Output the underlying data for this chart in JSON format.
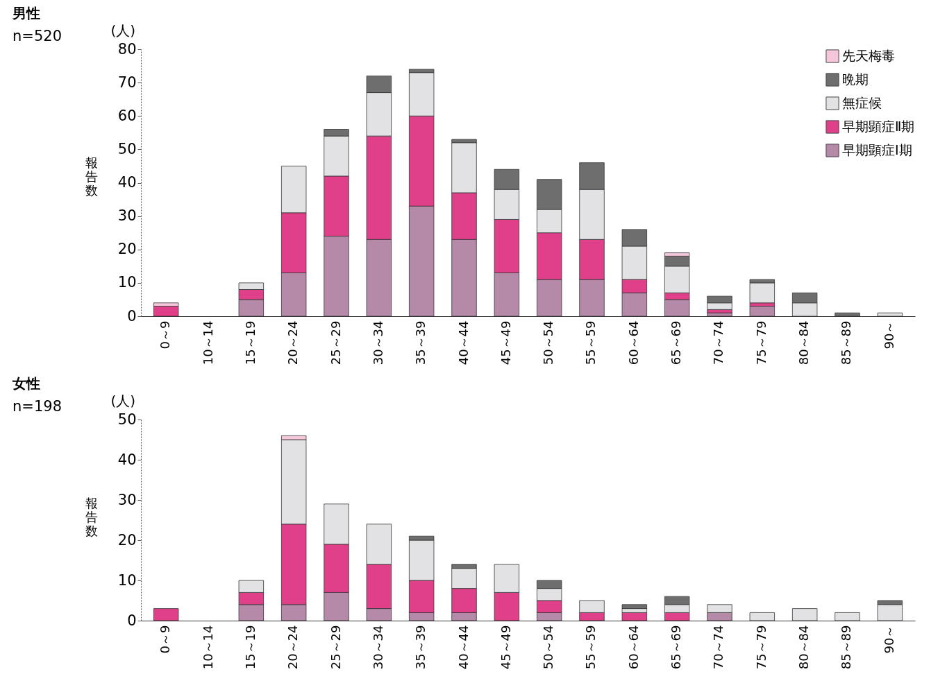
{
  "chart_data": [
    {
      "type": "bar",
      "title": "男性",
      "subtitle": "n=520",
      "ylabel": "報告数",
      "annotations": [
        "(人)"
      ],
      "categories": [
        "0～9",
        "10～14",
        "15～19",
        "20～24",
        "25～29",
        "30～34",
        "35～39",
        "40～44",
        "45～49",
        "50～54",
        "55～59",
        "60～64",
        "65～69",
        "70～74",
        "75～79",
        "80～84",
        "85～89",
        "90～"
      ],
      "stacked": true,
      "legend": "top right",
      "ylim": [
        0,
        80
      ],
      "yticks": [
        0,
        10,
        20,
        30,
        40,
        50,
        60,
        70,
        80
      ],
      "series": [
        {
          "name": "早期顕症Ⅰ期",
          "color": "#b58aa8",
          "values": [
            0,
            0,
            5,
            13,
            24,
            23,
            33,
            23,
            13,
            11,
            11,
            7,
            5,
            1,
            3,
            0,
            0,
            0
          ]
        },
        {
          "name": "早期顕症Ⅱ期",
          "color": "#e0408a",
          "values": [
            3,
            0,
            3,
            18,
            18,
            31,
            27,
            14,
            16,
            14,
            12,
            4,
            2,
            1,
            1,
            0,
            0,
            0
          ]
        },
        {
          "name": "無症候",
          "color": "#e2e2e4",
          "values": [
            0,
            0,
            2,
            14,
            12,
            13,
            13,
            15,
            9,
            7,
            15,
            10,
            8,
            2,
            6,
            4,
            0,
            1
          ]
        },
        {
          "name": "晩期",
          "color": "#6e6e6e",
          "values": [
            0,
            0,
            0,
            0,
            2,
            5,
            1,
            1,
            6,
            9,
            8,
            5,
            3,
            2,
            1,
            3,
            1,
            0
          ]
        },
        {
          "name": "先天梅毒",
          "color": "#f6c6da",
          "values": [
            1,
            0,
            0,
            0,
            0,
            0,
            0,
            0,
            0,
            0,
            0,
            0,
            1,
            0,
            0,
            0,
            0,
            0
          ]
        }
      ]
    },
    {
      "type": "bar",
      "title": "女性",
      "subtitle": "n=198",
      "ylabel": "報告数",
      "annotations": [
        "(人)"
      ],
      "categories": [
        "0～9",
        "10～14",
        "15～19",
        "20～24",
        "25～29",
        "30～34",
        "35～39",
        "40～44",
        "45～49",
        "50～54",
        "55～59",
        "60～64",
        "65～69",
        "70～74",
        "75～79",
        "80～84",
        "85～89",
        "90～"
      ],
      "stacked": true,
      "ylim": [
        0,
        50
      ],
      "yticks": [
        0,
        10,
        20,
        30,
        40,
        50
      ],
      "series": [
        {
          "color": "#b58aa8",
          "values": [
            0,
            0,
            4,
            4,
            7,
            3,
            2,
            2,
            0,
            2,
            0,
            0,
            0,
            2,
            0,
            0,
            0,
            0
          ]
        },
        {
          "color": "#e0408a",
          "values": [
            3,
            0,
            3,
            20,
            12,
            11,
            8,
            6,
            7,
            3,
            2,
            2,
            2,
            0,
            0,
            0,
            0,
            0
          ]
        },
        {
          "color": "#e2e2e4",
          "values": [
            0,
            0,
            3,
            21,
            10,
            10,
            10,
            5,
            7,
            3,
            3,
            1,
            2,
            2,
            2,
            3,
            2,
            4
          ]
        },
        {
          "color": "#6e6e6e",
          "values": [
            0,
            0,
            0,
            0,
            0,
            0,
            1,
            1,
            0,
            2,
            0,
            1,
            2,
            0,
            0,
            0,
            0,
            1
          ]
        },
        {
          "color": "#f6c6da",
          "values": [
            0,
            0,
            0,
            1,
            0,
            0,
            0,
            0,
            0,
            0,
            0,
            0,
            0,
            0,
            0,
            0,
            0,
            0
          ]
        }
      ]
    }
  ]
}
